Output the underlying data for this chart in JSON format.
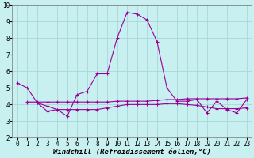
{
  "xlabel": "Windchill (Refroidissement éolien,°C)",
  "bg_color": "#c8f0f0",
  "grid_color": "#a8d8d8",
  "line_color": "#990099",
  "xlim": [
    -0.5,
    23.5
  ],
  "ylim": [
    2,
    10
  ],
  "xticks": [
    0,
    1,
    2,
    3,
    4,
    5,
    6,
    7,
    8,
    9,
    10,
    11,
    12,
    13,
    14,
    15,
    16,
    17,
    18,
    19,
    20,
    21,
    22,
    23
  ],
  "yticks": [
    2,
    3,
    4,
    5,
    6,
    7,
    8,
    9,
    10
  ],
  "curve1_x": [
    0,
    1,
    2,
    3,
    4,
    5,
    6,
    7,
    8,
    9,
    10,
    11,
    12,
    13,
    14,
    15,
    16,
    17,
    18,
    19,
    20,
    21,
    22,
    23
  ],
  "curve1_y": [
    5.3,
    5.0,
    4.1,
    3.6,
    3.7,
    3.3,
    4.6,
    4.8,
    5.85,
    5.85,
    8.0,
    9.55,
    9.45,
    9.1,
    7.8,
    5.0,
    4.2,
    4.2,
    4.3,
    3.5,
    4.2,
    3.7,
    3.5,
    4.3
  ],
  "curve2_x": [
    1,
    2,
    3,
    4,
    5,
    6,
    7,
    8,
    9,
    10,
    11,
    12,
    13,
    14,
    15,
    16,
    17,
    18,
    19,
    20,
    21,
    22,
    23
  ],
  "curve2_y": [
    4.15,
    4.15,
    4.15,
    4.15,
    4.15,
    4.15,
    4.15,
    4.15,
    4.15,
    4.2,
    4.2,
    4.2,
    4.2,
    4.25,
    4.3,
    4.3,
    4.35,
    4.35,
    4.35,
    4.35,
    4.35,
    4.35,
    4.4
  ],
  "curve3_x": [
    1,
    2,
    3,
    4,
    5,
    6,
    7,
    8,
    9,
    10,
    11,
    12,
    13,
    14,
    15,
    16,
    17,
    18,
    19,
    20,
    21,
    22,
    23
  ],
  "curve3_y": [
    4.1,
    4.1,
    3.9,
    3.7,
    3.7,
    3.7,
    3.7,
    3.7,
    3.8,
    3.9,
    4.0,
    4.0,
    4.0,
    4.0,
    4.05,
    4.05,
    4.0,
    3.95,
    3.85,
    3.75,
    3.75,
    3.75,
    3.8
  ],
  "xlabel_fontsize": 6.5,
  "tick_fontsize": 5.5,
  "linewidth": 0.8,
  "marker": "+",
  "markersize": 3.5,
  "markeredgewidth": 0.8
}
